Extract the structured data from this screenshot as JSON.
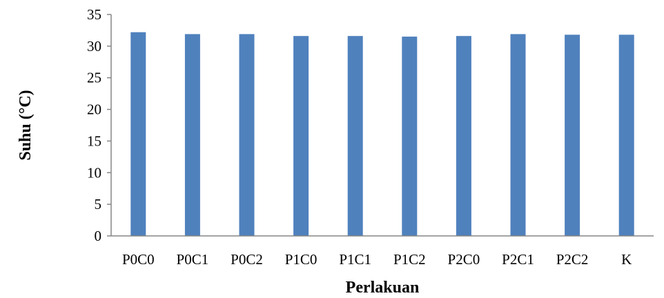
{
  "chart_data": {
    "type": "bar",
    "categories": [
      "P0C0",
      "P0C1",
      "P0C2",
      "P1C0",
      "P1C1",
      "P1C2",
      "P2C0",
      "P2C1",
      "P2C2",
      "K"
    ],
    "values": [
      32.2,
      31.9,
      31.9,
      31.6,
      31.6,
      31.5,
      31.6,
      31.9,
      31.8,
      31.8
    ],
    "title": "",
    "xlabel": "Perlakuan",
    "ylabel": "Suhu (°C)",
    "ylim": [
      0,
      35
    ],
    "yticks": [
      0,
      5,
      10,
      15,
      20,
      25,
      30,
      35
    ],
    "grid": false,
    "legend": "none",
    "bar_color": "#4F81BD",
    "axis_color": "#868686"
  }
}
